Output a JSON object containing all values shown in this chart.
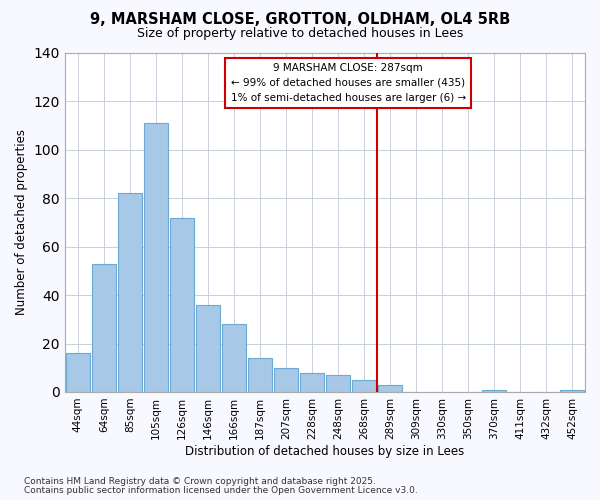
{
  "title": "9, MARSHAM CLOSE, GROTTON, OLDHAM, OL4 5RB",
  "subtitle": "Size of property relative to detached houses in Lees",
  "xlabel": "Distribution of detached houses by size in Lees",
  "ylabel": "Number of detached properties",
  "bar_labels": [
    "44sqm",
    "64sqm",
    "85sqm",
    "105sqm",
    "126sqm",
    "146sqm",
    "166sqm",
    "187sqm",
    "207sqm",
    "228sqm",
    "248sqm",
    "268sqm",
    "289sqm",
    "309sqm",
    "330sqm",
    "350sqm",
    "370sqm",
    "411sqm",
    "432sqm",
    "452sqm"
  ],
  "bar_values": [
    16,
    53,
    82,
    111,
    72,
    36,
    28,
    14,
    10,
    8,
    7,
    5,
    3,
    0,
    0,
    0,
    1,
    0,
    0,
    1
  ],
  "vline_index": 12,
  "bar_color": "#a8c8e8",
  "bar_edge_color": "#6aaad4",
  "vline_color": "#cc0000",
  "annotation_lines": [
    "9 MARSHAM CLOSE: 287sqm",
    "← 99% of detached houses are smaller (435)",
    "1% of semi-detached houses are larger (6) →"
  ],
  "footnote1": "Contains HM Land Registry data © Crown copyright and database right 2025.",
  "footnote2": "Contains public sector information licensed under the Open Government Licence v3.0.",
  "ylim": [
    0,
    140
  ],
  "yticks": [
    0,
    20,
    40,
    60,
    80,
    100,
    120,
    140
  ],
  "bg_color": "#f8f8ff",
  "plot_bg_color": "#ffffff"
}
